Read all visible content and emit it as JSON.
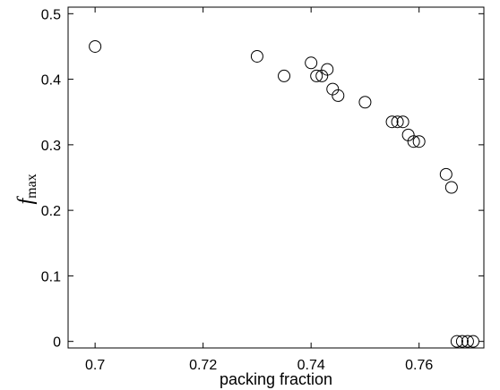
{
  "chart_data": {
    "type": "scatter",
    "xlabel": "packing fraction",
    "ylabel": {
      "main": "f",
      "subscript": "max"
    },
    "xlim": [
      0.695,
      0.772
    ],
    "ylim": [
      -0.01,
      0.51
    ],
    "xticks": [
      {
        "value": 0.7,
        "label": "0.7"
      },
      {
        "value": 0.72,
        "label": "0.72"
      },
      {
        "value": 0.74,
        "label": "0.74"
      },
      {
        "value": 0.76,
        "label": "0.76"
      }
    ],
    "yticks": [
      {
        "value": 0.0,
        "label": "0"
      },
      {
        "value": 0.1,
        "label": "0.1"
      },
      {
        "value": 0.2,
        "label": "0.2"
      },
      {
        "value": 0.3,
        "label": "0.3"
      },
      {
        "value": 0.4,
        "label": "0.4"
      },
      {
        "value": 0.5,
        "label": "0.5"
      }
    ],
    "grid": false,
    "marker": "open-circle",
    "points": [
      {
        "x": 0.7,
        "y": 0.45
      },
      {
        "x": 0.73,
        "y": 0.435
      },
      {
        "x": 0.735,
        "y": 0.405
      },
      {
        "x": 0.74,
        "y": 0.425
      },
      {
        "x": 0.741,
        "y": 0.405
      },
      {
        "x": 0.742,
        "y": 0.405
      },
      {
        "x": 0.743,
        "y": 0.415
      },
      {
        "x": 0.744,
        "y": 0.385
      },
      {
        "x": 0.745,
        "y": 0.375
      },
      {
        "x": 0.75,
        "y": 0.365
      },
      {
        "x": 0.755,
        "y": 0.335
      },
      {
        "x": 0.756,
        "y": 0.335
      },
      {
        "x": 0.757,
        "y": 0.335
      },
      {
        "x": 0.758,
        "y": 0.315
      },
      {
        "x": 0.759,
        "y": 0.305
      },
      {
        "x": 0.76,
        "y": 0.305
      },
      {
        "x": 0.765,
        "y": 0.255
      },
      {
        "x": 0.766,
        "y": 0.235
      },
      {
        "x": 0.767,
        "y": 0.0
      },
      {
        "x": 0.768,
        "y": 0.0
      },
      {
        "x": 0.769,
        "y": 0.0
      },
      {
        "x": 0.77,
        "y": 0.0
      }
    ]
  }
}
